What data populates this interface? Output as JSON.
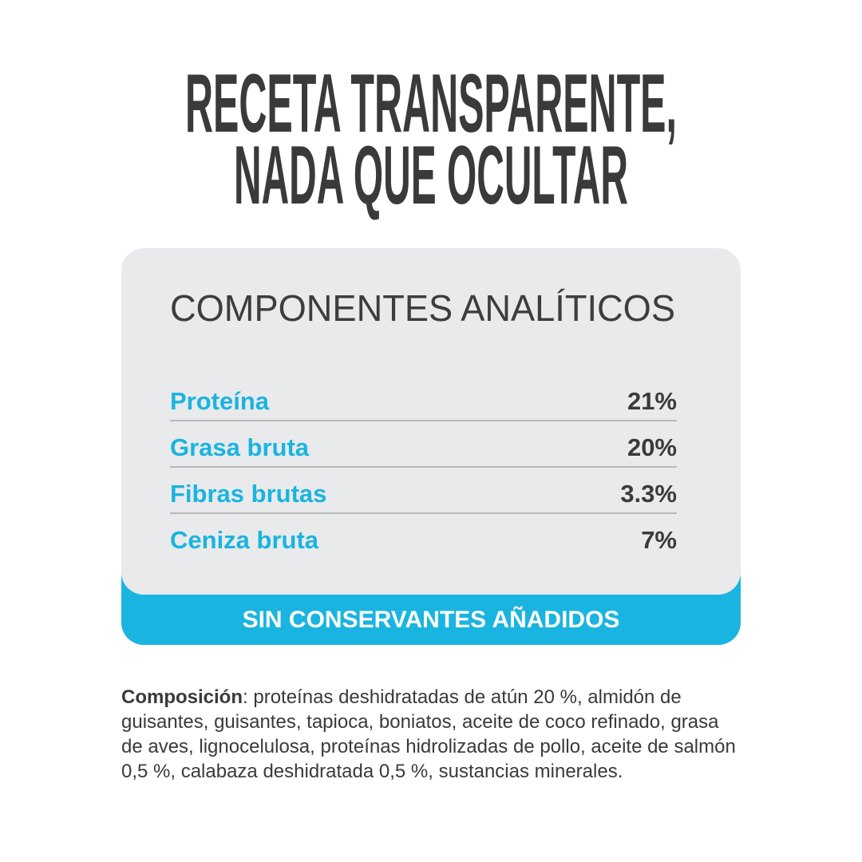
{
  "header": {
    "title_lines": [
      "RECETA TRANSPARENTE,",
      "NADA QUE OCULTAR"
    ]
  },
  "card": {
    "heading": "COMPONENTES ANALÍTICOS",
    "rows": [
      [
        "Proteína",
        "21%"
      ],
      [
        "Grasa bruta",
        "20%"
      ],
      [
        "Fibras brutas",
        "3.3%"
      ],
      [
        "Ceniza bruta",
        "7%"
      ]
    ],
    "banner": "SIN CONSERVANTES AÑADIDOS"
  },
  "composition": {
    "label": "Composición",
    "text": ": proteínas deshidratadas de atún 20 %, almidón de guisantes, guisantes, tapioca, boniatos, aceite de coco refinado, grasa de aves, lignocelulosa, proteínas hidrolizadas de pollo, aceite de salmón 0,5 %, calabaza deshidratada 0,5 %, sustancias minerales."
  }
}
